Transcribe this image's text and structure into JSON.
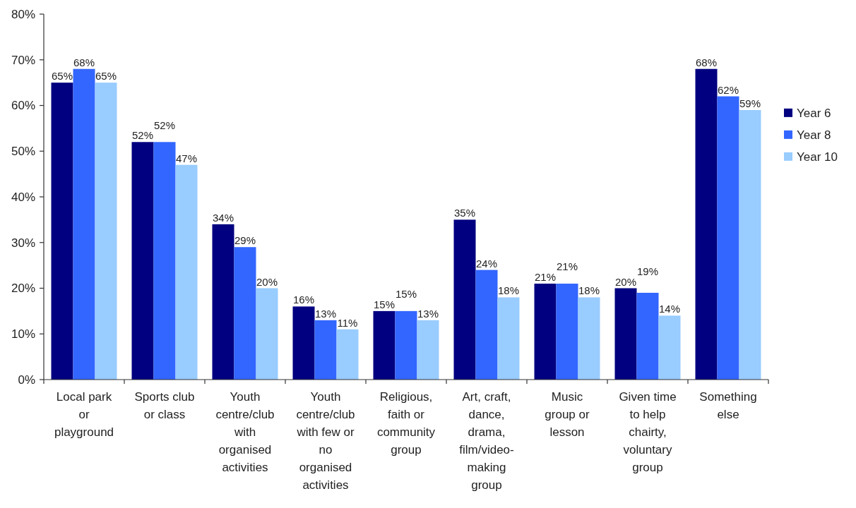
{
  "chart_data": {
    "type": "bar",
    "categories": [
      "Local park or playground",
      "Sports club or class",
      "Youth centre/club with organised activities",
      "Youth centre/club with few or no organised activities",
      "Religious, faith or community group",
      "Art, craft, dance, drama, film/video-making group",
      "Music group or lesson",
      "Given time to help chairty, voluntary group",
      "Something else"
    ],
    "series": [
      {
        "name": "Year 6",
        "color": "#000080",
        "values": [
          65,
          52,
          34,
          16,
          15,
          35,
          21,
          20,
          68
        ],
        "value_labels": [
          "65%",
          "52%",
          "34%",
          "16%",
          "15%",
          "35%",
          "21%",
          "20%",
          "68%"
        ]
      },
      {
        "name": "Year 8",
        "color": "#3366ff",
        "values": [
          68,
          52,
          29,
          13,
          15,
          24,
          21,
          19,
          62
        ],
        "value_labels": [
          "68%",
          "52%",
          "29%",
          "13%",
          "15%",
          "24%",
          "21%",
          "19%",
          "62%"
        ]
      },
      {
        "name": "Year 10",
        "color": "#99ccff",
        "values": [
          65,
          47,
          20,
          11,
          13,
          18,
          18,
          14,
          59
        ],
        "value_labels": [
          "65%",
          "47%",
          "20%",
          "11%",
          "13%",
          "18%",
          "18%",
          "14%",
          "59%"
        ]
      }
    ],
    "ylim": [
      0,
      80
    ],
    "yticks": [
      {
        "value": 0,
        "label": "0%"
      },
      {
        "value": 10,
        "label": "10%"
      },
      {
        "value": 20,
        "label": "20%"
      },
      {
        "value": 30,
        "label": "30%"
      },
      {
        "value": 40,
        "label": "40%"
      },
      {
        "value": 50,
        "label": "50%"
      },
      {
        "value": 60,
        "label": "60%"
      },
      {
        "value": 70,
        "label": "70%"
      },
      {
        "value": 80,
        "label": "80%"
      }
    ],
    "legend": "right"
  }
}
